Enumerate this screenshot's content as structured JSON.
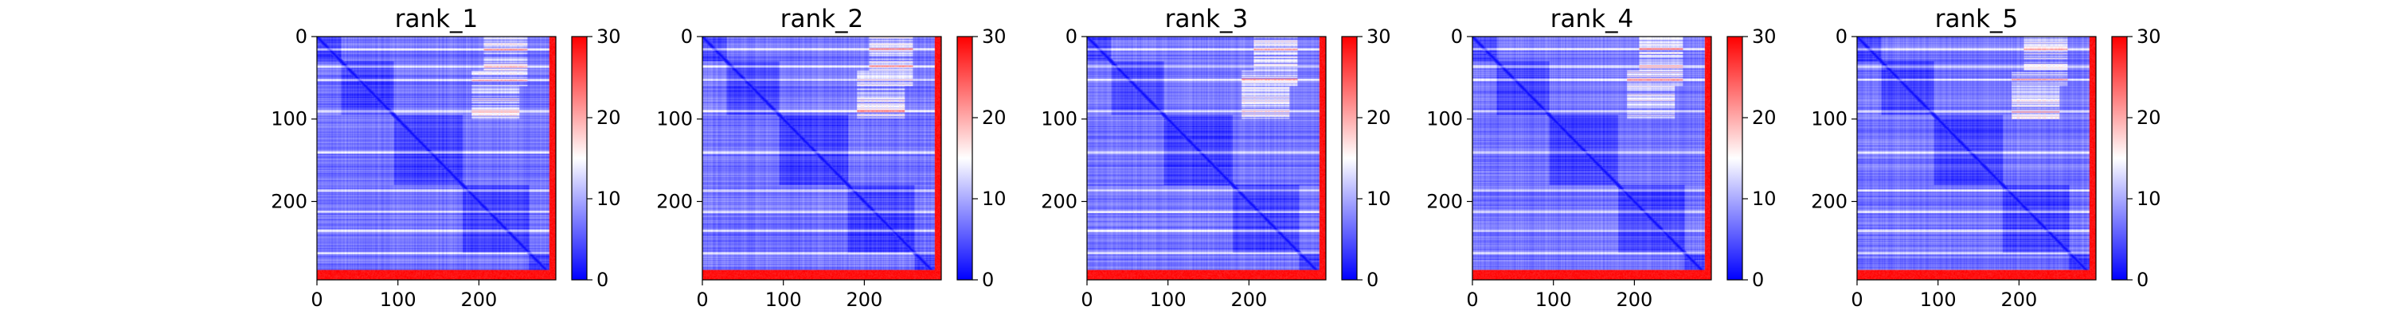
{
  "chart_data": [
    {
      "type": "heatmap",
      "title": "rank_1",
      "n": 295,
      "xticks": [
        0,
        100,
        200
      ],
      "yticks": [
        0,
        100,
        200
      ],
      "colorbar": {
        "ticks": [
          0,
          10,
          20,
          30
        ],
        "vmin": 0,
        "vmax": 30,
        "colors": [
          "#0000ff",
          "#ffffff",
          "#ff0000"
        ]
      }
    },
    {
      "type": "heatmap",
      "title": "rank_2",
      "n": 295,
      "xticks": [
        0,
        100,
        200
      ],
      "yticks": [
        0,
        100,
        200
      ],
      "colorbar": {
        "ticks": [
          0,
          10,
          20,
          30
        ],
        "vmin": 0,
        "vmax": 30,
        "colors": [
          "#0000ff",
          "#ffffff",
          "#ff0000"
        ]
      }
    },
    {
      "type": "heatmap",
      "title": "rank_3",
      "n": 295,
      "xticks": [
        0,
        100,
        200
      ],
      "yticks": [
        0,
        100,
        200
      ],
      "colorbar": {
        "ticks": [
          0,
          10,
          20,
          30
        ],
        "vmin": 0,
        "vmax": 30,
        "colors": [
          "#0000ff",
          "#ffffff",
          "#ff0000"
        ]
      }
    },
    {
      "type": "heatmap",
      "title": "rank_4",
      "n": 295,
      "xticks": [
        0,
        100,
        200
      ],
      "yticks": [
        0,
        100,
        200
      ],
      "colorbar": {
        "ticks": [
          0,
          10,
          20,
          30
        ],
        "vmin": 0,
        "vmax": 30,
        "colors": [
          "#0000ff",
          "#ffffff",
          "#ff0000"
        ]
      }
    },
    {
      "type": "heatmap",
      "title": "rank_5",
      "n": 295,
      "xticks": [
        0,
        100,
        200
      ],
      "yticks": [
        0,
        100,
        200
      ],
      "colorbar": {
        "ticks": [
          0,
          10,
          20,
          30
        ],
        "vmin": 0,
        "vmax": 30,
        "colors": [
          "#0000ff",
          "#ffffff",
          "#ff0000"
        ]
      }
    }
  ]
}
